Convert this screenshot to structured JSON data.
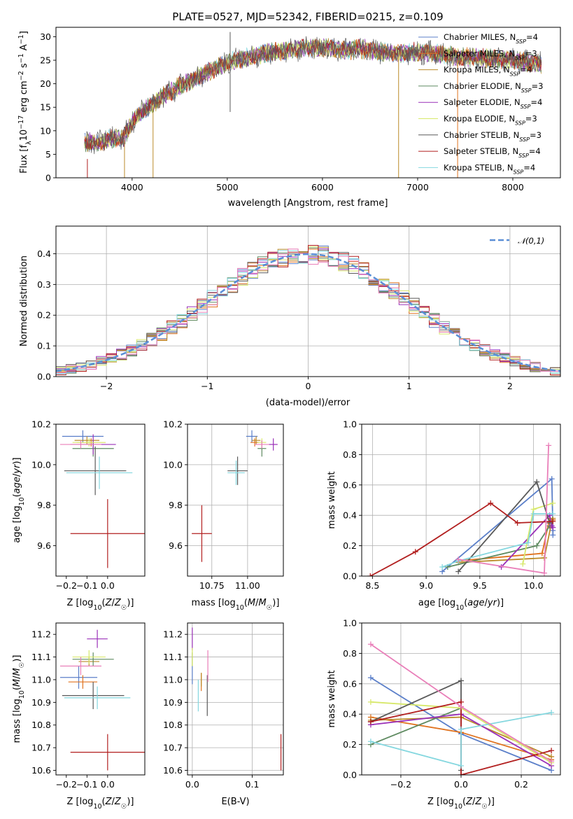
{
  "title": "PLATE=0527, MJD=52342, FIBERID=0215, z=0.109",
  "colors": {
    "Chabrier MILES": "#5b7fc9",
    "Salpeter MILES": "#e0731f",
    "Kroupa MILES": "#bb8b2a",
    "Chabrier ELODIE": "#5e8a60",
    "Salpeter ELODIE": "#9a30b8",
    "Kroupa ELODIE": "#d7e86a",
    "Chabrier STELIB": "#5a5a5a",
    "Salpeter STELIB": "#b21f1f",
    "Kroupa STELIB": "#84d7df",
    "gauss": "#5b8fd6",
    "pink": "#e97fb9",
    "grid": "#b0b0b0"
  },
  "chart_data": [
    {
      "id": "spectrum",
      "type": "line",
      "xlabel": "wavelength [Angstrom, rest frame]",
      "ylabel": "Flux [f_λ 10^-17 erg cm^-2 s^-1 A^-1]",
      "xlim": [
        3200,
        8500
      ],
      "ylim": [
        0,
        32
      ],
      "xticks": [
        "4000",
        "5000",
        "6000",
        "7000",
        "8000"
      ],
      "yticks": [
        "0",
        "5",
        "10",
        "15",
        "20",
        "25",
        "30"
      ],
      "grid": false,
      "legend_position": "top-right",
      "series": [
        {
          "name": "Chabrier MILES, N_SSP=4",
          "color": "#5b7fc9"
        },
        {
          "name": "Salpeter MILES, N_SSP=3",
          "color": "#e0731f"
        },
        {
          "name": "Kroupa MILES, N_SSP=4",
          "color": "#bb8b2a"
        },
        {
          "name": "Chabrier ELODIE, N_SSP=3",
          "color": "#5e8a60"
        },
        {
          "name": "Salpeter ELODIE, N_SSP=4",
          "color": "#9a30b8"
        },
        {
          "name": "Kroupa ELODIE, N_SSP=3",
          "color": "#d7e86a"
        },
        {
          "name": "Chabrier STELIB, N_SSP=3",
          "color": "#5a5a5a"
        },
        {
          "name": "Salpeter STELIB, N_SSP=4",
          "color": "#b21f1f"
        },
        {
          "name": "Kroupa STELIB, N_SSP=4",
          "color": "#84d7df"
        }
      ],
      "continuum": {
        "x": [
          3500,
          3650,
          3800,
          3900,
          4000,
          4100,
          4300,
          4500,
          4700,
          4800,
          5000,
          5200,
          5400,
          5600,
          5800,
          6000,
          6200,
          6400,
          6600,
          6800,
          7000,
          7200,
          7400,
          7600,
          7800,
          8000,
          8200,
          8300
        ],
        "y": [
          7.5,
          7.5,
          8.5,
          8.2,
          12,
          14,
          17,
          19.5,
          21.5,
          22.5,
          24.5,
          25.5,
          26.5,
          27,
          27.5,
          27.8,
          27,
          27.5,
          26.8,
          26.5,
          26.8,
          26.5,
          25.8,
          25.6,
          25.3,
          25,
          24.5,
          24.2
        ]
      },
      "spikes": [
        {
          "x": 3530,
          "ymin": 0,
          "ymax": 4,
          "series": "Salpeter STELIB"
        },
        {
          "x": 3920,
          "ymin": 0,
          "ymax": 8,
          "series": "Kroupa MILES"
        },
        {
          "x": 4220,
          "ymin": 0,
          "ymax": 15,
          "series": "Kroupa MILES"
        },
        {
          "x": 5030,
          "ymin": 14,
          "ymax": 31,
          "series": "Chabrier STELIB"
        },
        {
          "x": 6800,
          "ymin": 0,
          "ymax": 26,
          "series": "Kroupa MILES"
        },
        {
          "x": 7420,
          "ymin": 0,
          "ymax": 25,
          "series": "Salpeter MILES"
        }
      ]
    },
    {
      "id": "residuals",
      "type": "line",
      "xlabel": "(data-model)/error",
      "ylabel": "Normed distribution",
      "xlim": [
        -2.5,
        2.5
      ],
      "ylim": [
        0,
        0.49
      ],
      "xticks": [
        "−2",
        "−1",
        "0",
        "1",
        "2"
      ],
      "yticks": [
        "0.0",
        "0.1",
        "0.2",
        "0.3",
        "0.4"
      ],
      "grid": true,
      "legend_position": "top-right",
      "legend": "𝒩(0,1)",
      "gaussian": {
        "mean": 0,
        "sigma": 1
      },
      "hist_bins": 50
    },
    {
      "id": "Z_vs_age",
      "type": "scatter",
      "xlabel": "Z [log10(Z/Z☉)]",
      "ylabel": "age [log10(age/yr)]",
      "xlim": [
        -0.25,
        0.18
      ],
      "ylim": [
        9.45,
        10.2
      ],
      "xticks": [
        "−0.2",
        "−0.1",
        "0.0"
      ],
      "yticks": [
        "9.6",
        "9.8",
        "10.0",
        "10.2"
      ],
      "grid": false,
      "points": [
        {
          "series": "Chabrier MILES",
          "x": -0.12,
          "y": 10.14,
          "xerr": 0.1,
          "yerr": 0.03
        },
        {
          "series": "Salpeter MILES",
          "x": -0.08,
          "y": 10.11,
          "xerr": 0.07,
          "yerr": 0.02
        },
        {
          "series": "Kroupa MILES",
          "x": -0.1,
          "y": 10.12,
          "xerr": 0.06,
          "yerr": 0.02
        },
        {
          "series": "Chabrier ELODIE",
          "x": -0.07,
          "y": 10.08,
          "xerr": 0.1,
          "yerr": 0.04
        },
        {
          "series": "Salpeter ELODIE",
          "x": -0.07,
          "y": 10.1,
          "xerr": 0.11,
          "yerr": 0.05
        },
        {
          "series": "Kroupa ELODIE",
          "x": -0.09,
          "y": 10.11,
          "xerr": 0.08,
          "yerr": 0.02
        },
        {
          "series": "Chabrier STELIB",
          "x": -0.06,
          "y": 9.97,
          "xerr": 0.15,
          "yerr": 0.12
        },
        {
          "series": "Salpeter STELIB",
          "x": 0.0,
          "y": 9.66,
          "xerr": 0.18,
          "yerr": 0.17
        },
        {
          "series": "Kroupa STELIB",
          "x": -0.04,
          "y": 9.96,
          "xerr": 0.16,
          "yerr": 0.08
        },
        {
          "series": "pink",
          "x": -0.13,
          "y": 10.1,
          "xerr": 0.1,
          "yerr": 0.02
        }
      ]
    },
    {
      "id": "mass_vs_age",
      "type": "scatter",
      "xlabel": "mass [log10(M/M☉)]",
      "ylabel": "",
      "xlim": [
        10.58,
        11.25
      ],
      "ylim": [
        9.45,
        10.2
      ],
      "xticks": [
        "10.75",
        "11.00"
      ],
      "yticks": [
        "9.6",
        "9.8",
        "10.0",
        "10.2"
      ],
      "grid": true,
      "points": [
        {
          "series": "Chabrier MILES",
          "x": 11.03,
          "y": 10.14,
          "xerr": 0.04,
          "yerr": 0.03
        },
        {
          "series": "Salpeter MILES",
          "x": 11.05,
          "y": 10.11,
          "xerr": 0.03,
          "yerr": 0.02
        },
        {
          "series": "Kroupa MILES",
          "x": 11.06,
          "y": 10.12,
          "xerr": 0.03,
          "yerr": 0.02
        },
        {
          "series": "Chabrier ELODIE",
          "x": 11.1,
          "y": 10.08,
          "xerr": 0.03,
          "yerr": 0.04
        },
        {
          "series": "Salpeter ELODIE",
          "x": 11.18,
          "y": 10.1,
          "xerr": 0.03,
          "yerr": 0.03
        },
        {
          "series": "Kroupa ELODIE",
          "x": 11.1,
          "y": 10.11,
          "xerr": 0.03,
          "yerr": 0.02
        },
        {
          "series": "Chabrier STELIB",
          "x": 10.93,
          "y": 9.97,
          "xerr": 0.07,
          "yerr": 0.07
        },
        {
          "series": "Salpeter STELIB",
          "x": 10.68,
          "y": 9.66,
          "xerr": 0.07,
          "yerr": 0.14
        },
        {
          "series": "Kroupa STELIB",
          "x": 10.92,
          "y": 9.96,
          "xerr": 0.06,
          "yerr": 0.06
        },
        {
          "series": "pink",
          "x": 11.1,
          "y": 10.1,
          "xerr": 0.05,
          "yerr": 0.02
        }
      ]
    },
    {
      "id": "age_vs_weight",
      "type": "line",
      "xlabel": "age [log10(age/yr)]",
      "ylabel": "mass weight",
      "xlim": [
        8.4,
        10.25
      ],
      "ylim": [
        0,
        1
      ],
      "xticks": [
        "8.5",
        "9.0",
        "9.5",
        "10.0"
      ],
      "yticks": [
        "0.0",
        "0.2",
        "0.4",
        "0.6",
        "0.8",
        "1.0"
      ],
      "grid": true,
      "series": [
        {
          "series": "Chabrier MILES",
          "x": [
            9.15,
            10.17,
            10.18,
            10.18
          ],
          "y": [
            0.03,
            0.64,
            0.3,
            0.27
          ]
        },
        {
          "series": "Salpeter MILES",
          "x": [
            9.3,
            10.08,
            10.15,
            10.18
          ],
          "y": [
            0.1,
            0.15,
            0.38,
            0.37
          ]
        },
        {
          "series": "Kroupa MILES",
          "x": [
            9.3,
            10.1,
            10.17,
            10.18
          ],
          "y": [
            0.09,
            0.12,
            0.36,
            0.38
          ]
        },
        {
          "series": "Chabrier ELODIE",
          "x": [
            9.2,
            10.03,
            10.15
          ],
          "y": [
            0.06,
            0.2,
            0.33
          ]
        },
        {
          "series": "Salpeter ELODIE",
          "x": [
            9.7,
            10.15,
            10.17,
            10.18
          ],
          "y": [
            0.06,
            0.4,
            0.33,
            0.32
          ]
        },
        {
          "series": "Kroupa ELODIE",
          "x": [
            9.9,
            10.0,
            10.18
          ],
          "y": [
            0.08,
            0.44,
            0.48
          ]
        },
        {
          "series": "Chabrier STELIB",
          "x": [
            9.3,
            10.03,
            10.15
          ],
          "y": [
            0.03,
            0.62,
            0.35
          ]
        },
        {
          "series": "Salpeter STELIB",
          "x": [
            8.48,
            8.9,
            9.6,
            9.85,
            10.18
          ],
          "y": [
            0.0,
            0.16,
            0.48,
            0.35,
            0.36
          ]
        },
        {
          "series": "Kroupa STELIB",
          "x": [
            9.15,
            9.3,
            9.95,
            10.0,
            10.18
          ],
          "y": [
            0.06,
            0.1,
            0.22,
            0.41,
            0.41
          ]
        },
        {
          "series": "pink",
          "x": [
            9.3,
            10.1,
            10.14
          ],
          "y": [
            0.11,
            0.02,
            0.86
          ]
        }
      ]
    },
    {
      "id": "Z_vs_mass",
      "type": "scatter",
      "xlabel": "Z [log10(Z/Z☉)]",
      "ylabel": "mass [log10(M/M☉)]",
      "xlim": [
        -0.25,
        0.18
      ],
      "ylim": [
        10.58,
        11.25
      ],
      "xticks": [
        "−0.2",
        "−0.1",
        "0.0"
      ],
      "yticks": [
        "10.6",
        "10.7",
        "10.8",
        "10.9",
        "11.0",
        "11.1",
        "11.2"
      ],
      "grid": false,
      "points": [
        {
          "series": "Chabrier MILES",
          "x": -0.14,
          "y": 11.01,
          "xerr": 0.09,
          "yerr": 0.05
        },
        {
          "series": "Salpeter MILES",
          "x": -0.12,
          "y": 10.99,
          "xerr": 0.07,
          "yerr": 0.03
        },
        {
          "series": "Kroupa MILES",
          "x": -0.09,
          "y": 11.08,
          "xerr": 0.05,
          "yerr": 0.02
        },
        {
          "series": "Chabrier ELODIE",
          "x": -0.07,
          "y": 11.09,
          "xerr": 0.1,
          "yerr": 0.03
        },
        {
          "series": "Salpeter ELODIE",
          "x": -0.05,
          "y": 11.18,
          "xerr": 0.05,
          "yerr": 0.04
        },
        {
          "series": "Kroupa ELODIE",
          "x": -0.09,
          "y": 11.1,
          "xerr": 0.08,
          "yerr": 0.03
        },
        {
          "series": "Chabrier STELIB",
          "x": -0.07,
          "y": 10.93,
          "xerr": 0.15,
          "yerr": 0.06
        },
        {
          "series": "Salpeter STELIB",
          "x": 0.0,
          "y": 10.68,
          "xerr": 0.18,
          "yerr": 0.08
        },
        {
          "series": "Kroupa STELIB",
          "x": -0.05,
          "y": 10.92,
          "xerr": 0.16,
          "yerr": 0.05
        },
        {
          "series": "pink",
          "x": -0.13,
          "y": 11.06,
          "xerr": 0.1,
          "yerr": 0.04
        }
      ]
    },
    {
      "id": "EBV_vs_mass",
      "type": "scatter",
      "xlabel": "E(B-V)",
      "ylabel": "",
      "xlim": [
        -0.008,
        0.152
      ],
      "ylim": [
        10.58,
        11.25
      ],
      "xticks": [
        "0.0",
        "0.1"
      ],
      "yticks": [
        "10.6",
        "10.7",
        "10.8",
        "10.9",
        "11.0",
        "11.1",
        "11.2"
      ],
      "grid": true,
      "points": [
        {
          "series": "Chabrier MILES",
          "x": 0.0,
          "y": 11.02,
          "xerr": 0.0,
          "yerr": 0.04
        },
        {
          "series": "Salpeter MILES",
          "x": 0.015,
          "y": 10.99,
          "xerr": 0.0,
          "yerr": 0.04
        },
        {
          "series": "Kroupa MILES",
          "x": 0.015,
          "y": 11.0,
          "xerr": 0.0,
          "yerr": 0.03
        },
        {
          "series": "Chabrier ELODIE",
          "x": 0.0,
          "y": 11.09,
          "xerr": 0.0,
          "yerr": 0.03
        },
        {
          "series": "Salpeter ELODIE",
          "x": 0.0,
          "y": 11.18,
          "xerr": 0.0,
          "yerr": 0.05
        },
        {
          "series": "Kroupa ELODIE",
          "x": 0.0,
          "y": 11.1,
          "xerr": 0.0,
          "yerr": 0.04
        },
        {
          "series": "Chabrier STELIB",
          "x": 0.025,
          "y": 10.93,
          "xerr": 0.0,
          "yerr": 0.09
        },
        {
          "series": "Salpeter STELIB",
          "x": 0.148,
          "y": 10.68,
          "xerr": 0.0,
          "yerr": 0.08
        },
        {
          "series": "Kroupa STELIB",
          "x": 0.01,
          "y": 10.93,
          "xerr": 0.0,
          "yerr": 0.07
        },
        {
          "series": "pink",
          "x": 0.026,
          "y": 11.06,
          "xerr": 0.0,
          "yerr": 0.07
        }
      ]
    },
    {
      "id": "Z_vs_weight",
      "type": "line",
      "xlabel": "Z [log10(Z/Z☉)]",
      "ylabel": "mass weight",
      "xlim": [
        -0.33,
        0.33
      ],
      "ylim": [
        0,
        1
      ],
      "xticks": [
        "−0.2",
        "0.0",
        "0.2"
      ],
      "yticks": [
        "0.0",
        "0.2",
        "0.4",
        "0.6",
        "0.8",
        "1.0"
      ],
      "grid": true,
      "series": [
        {
          "series": "Chabrier MILES",
          "x": [
            -0.3,
            0.0,
            0.3
          ],
          "y": [
            0.64,
            0.27,
            0.03
          ]
        },
        {
          "series": "Salpeter MILES",
          "x": [
            -0.3,
            0.0,
            0.3
          ],
          "y": [
            0.38,
            0.28,
            0.1
          ]
        },
        {
          "series": "Kroupa MILES",
          "x": [
            -0.3,
            0.0,
            0.3
          ],
          "y": [
            0.36,
            0.38,
            0.12
          ]
        },
        {
          "series": "Chabrier ELODIE",
          "x": [
            -0.3,
            0.0
          ],
          "y": [
            0.2,
            0.44
          ]
        },
        {
          "series": "Salpeter ELODIE",
          "x": [
            -0.3,
            0.0,
            0.3
          ],
          "y": [
            0.33,
            0.4,
            0.06
          ]
        },
        {
          "series": "Kroupa ELODIE",
          "x": [
            -0.3,
            0.0,
            0.3
          ],
          "y": [
            0.48,
            0.44,
            0.08
          ]
        },
        {
          "series": "Chabrier STELIB",
          "x": [
            -0.3,
            0.0,
            0.0
          ],
          "y": [
            0.35,
            0.62,
            0.03
          ]
        },
        {
          "series": "Salpeter STELIB",
          "x": [
            -0.3,
            0.0,
            0.0,
            0.3
          ],
          "y": [
            0.35,
            0.48,
            0.0,
            0.16
          ]
        },
        {
          "series": "Kroupa STELIB",
          "x": [
            -0.3,
            0.0,
            0.0,
            0.3
          ],
          "y": [
            0.22,
            0.06,
            0.3,
            0.41
          ]
        },
        {
          "series": "pink",
          "x": [
            -0.3,
            0.0,
            0.3
          ],
          "y": [
            0.86,
            0.45,
            0.09
          ]
        }
      ]
    }
  ]
}
